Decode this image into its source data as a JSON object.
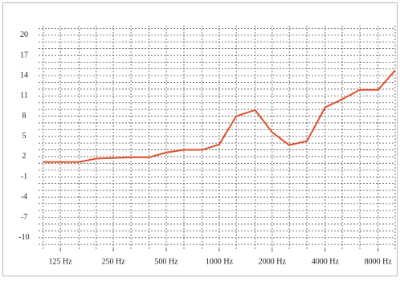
{
  "chart_data": {
    "type": "line",
    "x": [
      100,
      125,
      160,
      200,
      250,
      315,
      400,
      500,
      630,
      800,
      1000,
      1250,
      1600,
      2000,
      2500,
      3150,
      4000,
      5000,
      6300,
      8000,
      10000
    ],
    "series": [
      {
        "color": "#e0512a",
        "values": [
          1.2,
          1.2,
          1.2,
          1.7,
          1.8,
          1.9,
          1.9,
          2.6,
          3.0,
          3.0,
          3.8,
          8.0,
          8.9,
          5.6,
          3.7,
          4.3,
          9.3,
          10.5,
          11.9,
          11.9,
          14.8
        ]
      }
    ],
    "xscale": "log",
    "xlim": [
      94,
      10000
    ],
    "xticks": [
      {
        "value": 125,
        "label": "125 Hz"
      },
      {
        "value": 250,
        "label": "250 Hz"
      },
      {
        "value": 500,
        "label": "500 Hz"
      },
      {
        "value": 1000,
        "label": "1000 Hz"
      },
      {
        "value": 2000,
        "label": "2000 Hz"
      },
      {
        "value": 4000,
        "label": "4000 Hz"
      },
      {
        "value": 8000,
        "label": "8000 Hz"
      }
    ],
    "ylim": [
      -11.7,
      21.4
    ],
    "yticks": [
      20,
      17,
      14,
      11,
      8,
      5,
      2,
      -1,
      -4,
      -7,
      -10
    ],
    "y_minor_ticks": [
      -11,
      -10,
      -9,
      -8,
      -7,
      -6,
      -5,
      -4,
      -3,
      -2,
      -1,
      0,
      1,
      2,
      3,
      4,
      5,
      6,
      7,
      8,
      9,
      10,
      11,
      12,
      13,
      14,
      15,
      16,
      17,
      18,
      19,
      20,
      21
    ],
    "grid": true
  }
}
